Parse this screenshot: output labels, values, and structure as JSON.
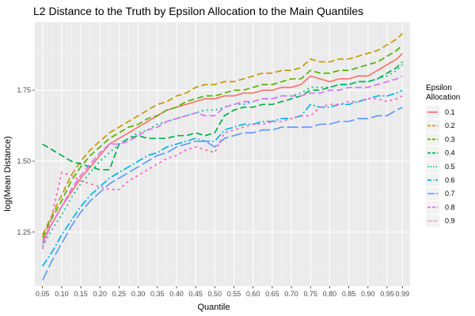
{
  "chart_data": {
    "type": "line",
    "title": "L2 Distance to the Truth by Epsilon Allocation to the Main Quantiles",
    "xlabel": "Quantile",
    "ylabel": "log(Mean Distance)",
    "x": [
      0.05,
      0.075,
      0.1,
      0.125,
      0.15,
      0.175,
      0.2,
      0.225,
      0.25,
      0.275,
      0.3,
      0.325,
      0.35,
      0.375,
      0.4,
      0.425,
      0.45,
      0.475,
      0.5,
      0.525,
      0.55,
      0.575,
      0.6,
      0.625,
      0.65,
      0.675,
      0.7,
      0.725,
      0.75,
      0.775,
      0.8,
      0.825,
      0.85,
      0.875,
      0.9,
      0.925,
      0.95,
      0.975,
      0.99
    ],
    "x_ticks": [
      0.05,
      0.1,
      0.15,
      0.2,
      0.25,
      0.3,
      0.35,
      0.4,
      0.45,
      0.5,
      0.55,
      0.6,
      0.65,
      0.7,
      0.75,
      0.8,
      0.85,
      0.9,
      0.95,
      0.99
    ],
    "x_tick_labels": [
      "0.05",
      "0.10",
      "0.15",
      "0.20",
      "0.25",
      "0.30",
      "0.35",
      "0.40",
      "0.45",
      "0.50",
      "0.55",
      "0.60",
      "0.65",
      "0.70",
      "0.75",
      "0.80",
      "0.85",
      "0.90",
      "0.95",
      "0.99"
    ],
    "xlim": [
      0.03,
      1.01
    ],
    "y_ticks": [
      1.25,
      1.5,
      1.75
    ],
    "y_tick_labels": [
      "1.25",
      "1.50",
      "1.75"
    ],
    "ylim": [
      1.06,
      1.99
    ],
    "grid": true,
    "legend": {
      "title": "Epsilon\nAllocation",
      "position": "right"
    },
    "series": [
      {
        "name": "0.1",
        "color": "#F8766D",
        "dash": "solid",
        "values": [
          1.22,
          1.28,
          1.34,
          1.39,
          1.44,
          1.48,
          1.52,
          1.56,
          1.58,
          1.6,
          1.62,
          1.64,
          1.66,
          1.68,
          1.69,
          1.7,
          1.71,
          1.72,
          1.72,
          1.73,
          1.73,
          1.74,
          1.74,
          1.75,
          1.75,
          1.76,
          1.76,
          1.77,
          1.8,
          1.79,
          1.78,
          1.79,
          1.79,
          1.8,
          1.8,
          1.82,
          1.84,
          1.86,
          1.88
        ]
      },
      {
        "name": "0.2",
        "color": "#C49A00",
        "dash": "8,4",
        "values": [
          1.24,
          1.31,
          1.38,
          1.45,
          1.5,
          1.54,
          1.57,
          1.6,
          1.62,
          1.64,
          1.66,
          1.68,
          1.7,
          1.71,
          1.73,
          1.74,
          1.76,
          1.77,
          1.77,
          1.78,
          1.78,
          1.79,
          1.8,
          1.81,
          1.81,
          1.82,
          1.82,
          1.83,
          1.86,
          1.85,
          1.85,
          1.86,
          1.86,
          1.87,
          1.88,
          1.89,
          1.91,
          1.93,
          1.95
        ]
      },
      {
        "name": "0.3",
        "color": "#53B400",
        "dash": "8,4",
        "values": [
          1.23,
          1.3,
          1.36,
          1.43,
          1.48,
          1.52,
          1.55,
          1.58,
          1.6,
          1.62,
          1.63,
          1.65,
          1.66,
          1.68,
          1.69,
          1.71,
          1.72,
          1.73,
          1.73,
          1.74,
          1.75,
          1.75,
          1.76,
          1.77,
          1.77,
          1.78,
          1.79,
          1.79,
          1.82,
          1.81,
          1.81,
          1.82,
          1.82,
          1.83,
          1.84,
          1.85,
          1.87,
          1.89,
          1.91
        ]
      },
      {
        "name": "0.4",
        "color": "#00B04A",
        "dash": "8,4",
        "values": [
          1.56,
          1.54,
          1.52,
          1.5,
          1.49,
          1.48,
          1.47,
          1.47,
          1.56,
          1.58,
          1.59,
          1.58,
          1.58,
          1.58,
          1.59,
          1.59,
          1.6,
          1.59,
          1.6,
          1.66,
          1.68,
          1.69,
          1.69,
          1.7,
          1.7,
          1.71,
          1.72,
          1.73,
          1.75,
          1.75,
          1.76,
          1.77,
          1.77,
          1.78,
          1.78,
          1.79,
          1.81,
          1.83,
          1.85
        ]
      },
      {
        "name": "0.5",
        "color": "#00C094",
        "dash": "2,4",
        "values": [
          1.2,
          1.26,
          1.31,
          1.37,
          1.42,
          1.46,
          1.5,
          1.53,
          1.56,
          1.58,
          1.6,
          1.61,
          1.63,
          1.64,
          1.65,
          1.66,
          1.67,
          1.68,
          1.68,
          1.69,
          1.7,
          1.7,
          1.71,
          1.72,
          1.72,
          1.73,
          1.73,
          1.74,
          1.76,
          1.76,
          1.76,
          1.77,
          1.77,
          1.78,
          1.78,
          1.79,
          1.8,
          1.82,
          1.84
        ]
      },
      {
        "name": "0.6",
        "color": "#00B6EB",
        "dash": "10,3,2,3",
        "values": [
          1.13,
          1.18,
          1.24,
          1.29,
          1.34,
          1.38,
          1.41,
          1.44,
          1.46,
          1.48,
          1.5,
          1.52,
          1.53,
          1.55,
          1.56,
          1.57,
          1.58,
          1.57,
          1.57,
          1.61,
          1.62,
          1.63,
          1.63,
          1.64,
          1.64,
          1.65,
          1.65,
          1.66,
          1.7,
          1.69,
          1.69,
          1.7,
          1.7,
          1.71,
          1.72,
          1.73,
          1.73,
          1.74,
          1.75
        ]
      },
      {
        "name": "0.7",
        "color": "#619CFF",
        "dash": "14,4",
        "values": [
          1.08,
          1.15,
          1.21,
          1.27,
          1.32,
          1.36,
          1.39,
          1.42,
          1.44,
          1.46,
          1.48,
          1.5,
          1.52,
          1.53,
          1.55,
          1.56,
          1.57,
          1.57,
          1.55,
          1.58,
          1.59,
          1.6,
          1.6,
          1.61,
          1.61,
          1.62,
          1.62,
          1.62,
          1.62,
          1.63,
          1.63,
          1.64,
          1.64,
          1.65,
          1.65,
          1.66,
          1.66,
          1.68,
          1.69
        ]
      },
      {
        "name": "0.8",
        "color": "#DB72FB",
        "dash": "8,4",
        "values": [
          1.21,
          1.28,
          1.34,
          1.4,
          1.45,
          1.49,
          1.53,
          1.56,
          1.56,
          1.57,
          1.59,
          1.61,
          1.62,
          1.64,
          1.65,
          1.66,
          1.67,
          1.66,
          1.66,
          1.69,
          1.7,
          1.71,
          1.71,
          1.72,
          1.72,
          1.73,
          1.73,
          1.73,
          1.74,
          1.74,
          1.75,
          1.75,
          1.76,
          1.76,
          1.76,
          1.77,
          1.78,
          1.79,
          1.8
        ]
      },
      {
        "name": "0.9",
        "color": "#FF61C3",
        "dash": "3,4",
        "values": [
          1.19,
          1.31,
          1.46,
          1.45,
          1.43,
          1.42,
          1.41,
          1.4,
          1.4,
          1.43,
          1.45,
          1.47,
          1.49,
          1.51,
          1.52,
          1.54,
          1.55,
          1.54,
          1.53,
          1.6,
          1.61,
          1.62,
          1.63,
          1.63,
          1.64,
          1.64,
          1.65,
          1.66,
          1.66,
          1.69,
          1.7,
          1.7,
          1.71,
          1.71,
          1.72,
          1.72,
          1.71,
          1.72,
          1.73
        ]
      }
    ]
  }
}
